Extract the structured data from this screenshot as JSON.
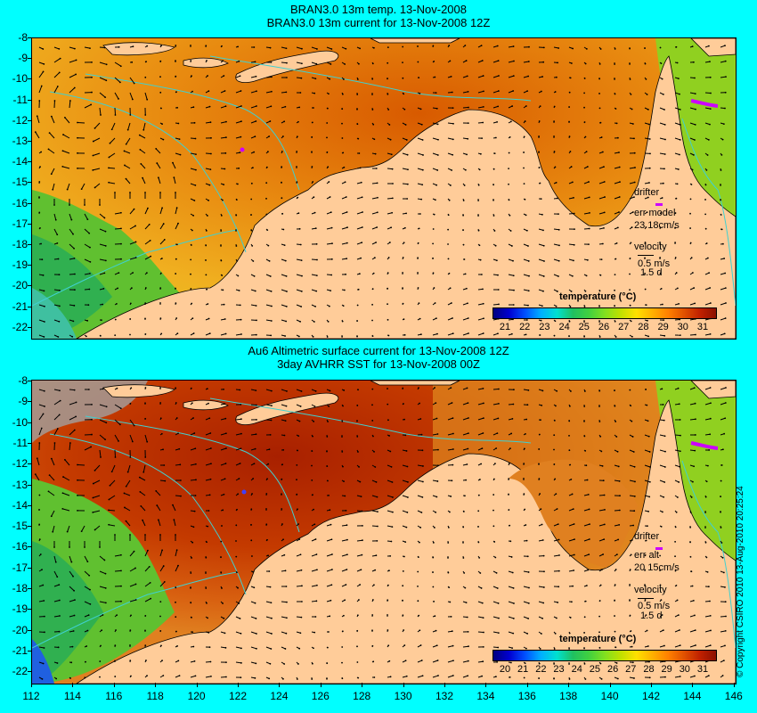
{
  "top": {
    "title_line1": "BRAN3.0 13m temp. 13-Nov-2008",
    "title_line2": "BRAN3.0 13m current for 13-Nov-2008 12Z",
    "drifter_label": "drifter",
    "err_label": "err model",
    "err_value": "23 18cm/s",
    "velocity_label": "velocity",
    "velocity_scale": "0.5 m/s",
    "velocity_time": "1.5 d",
    "colorbar_title": "temperature (°C)",
    "colorbar_ticks": [
      "21",
      "22",
      "23",
      "24",
      "25",
      "26",
      "27",
      "28",
      "29",
      "30",
      "31"
    ]
  },
  "bottom": {
    "title_line1": "Au6 Altimetric surface current for 13-Nov-2008 12Z",
    "title_line2": "3day AVHRR SST for 13-Nov-2008 00Z",
    "drifter_label": "drifter",
    "err_label": "err alt",
    "err_value": "20 15cm/s",
    "velocity_label": "velocity",
    "velocity_scale": "0.5 m/s",
    "velocity_time": "1.5 d",
    "colorbar_title": "temperature (°C)",
    "colorbar_ticks": [
      "20",
      "21",
      "22",
      "23",
      "24",
      "25",
      "26",
      "27",
      "28",
      "29",
      "30",
      "31"
    ]
  },
  "y_ticks": [
    "-8",
    "-9",
    "-10",
    "-11",
    "-12",
    "-13",
    "-14",
    "-15",
    "-16",
    "-17",
    "-18",
    "-19",
    "-20",
    "-21",
    "-22"
  ],
  "x_ticks": [
    "112",
    "114",
    "116",
    "118",
    "120",
    "122",
    "124",
    "126",
    "128",
    "130",
    "132",
    "134",
    "136",
    "138",
    "140",
    "142",
    "144",
    "146"
  ],
  "copyright": "© Copyright CSIRO 2010  13-Aug-2010 20:25:24",
  "colors": {
    "background": "#00ffff",
    "land": "#ffcc99",
    "warm_sea": "#e07000",
    "hot_sea": "#b82a00",
    "cool_sea": "#40c040",
    "bathymetry": "#40d0d0",
    "drifter": "#cc00ff"
  }
}
